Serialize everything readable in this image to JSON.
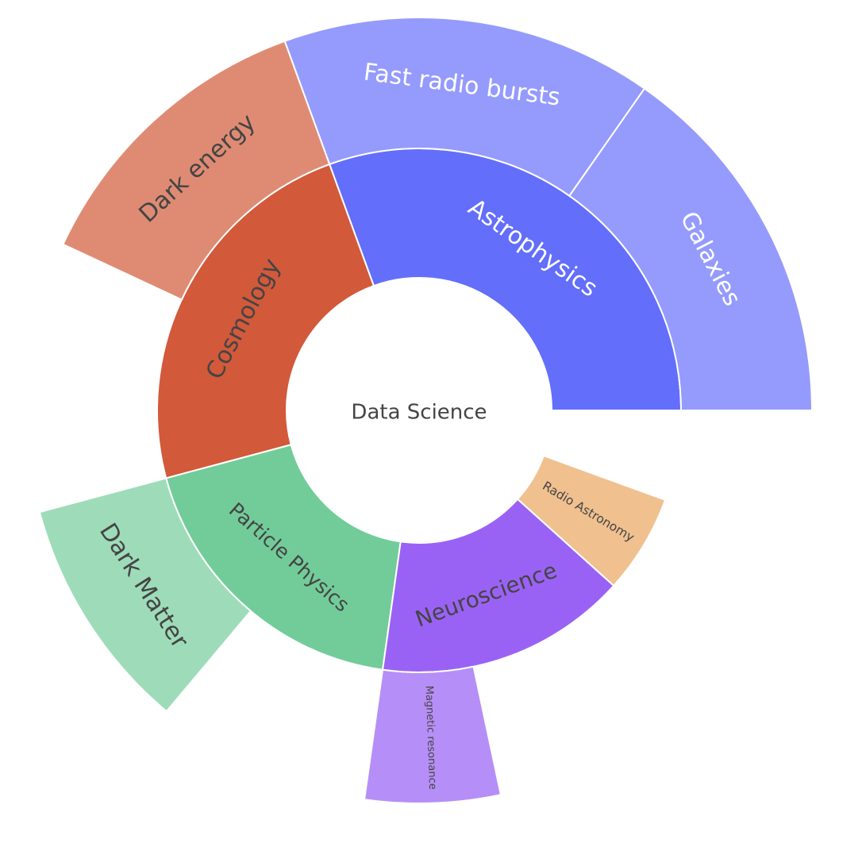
{
  "chart_data": {
    "type": "sunburst",
    "root": {
      "label": "Data Science",
      "color": "#ffffff",
      "text_color": "#444444"
    },
    "children": [
      {
        "label": "Astrophysics",
        "color": "#636efa",
        "text_color": "#ffffff",
        "start_deg": 0,
        "end_deg": 110,
        "children": [
          {
            "label": "Galaxies",
            "color": "#959bfc",
            "text_color": "#ffffff",
            "start_deg": 0,
            "end_deg": 55
          },
          {
            "label": "Fast radio bursts",
            "color": "#959bfc",
            "text_color": "#ffffff",
            "start_deg": 55,
            "end_deg": 110
          }
        ]
      },
      {
        "label": "Cosmology",
        "color": "#d2593a",
        "text_color": "#444444",
        "start_deg": 110,
        "end_deg": 195,
        "children": [
          {
            "label": "Dark energy",
            "color": "#df8b74",
            "text_color": "#444444",
            "start_deg": 110,
            "end_deg": 155
          }
        ]
      },
      {
        "label": "Particle Physics",
        "color": "#72cc99",
        "text_color": "#444444",
        "start_deg": 195,
        "end_deg": 262,
        "children": [
          {
            "label": "Dark Matter",
            "color": "#9edcb9",
            "text_color": "#444444",
            "start_deg": 195,
            "end_deg": 230
          }
        ]
      },
      {
        "label": "Neuroscience",
        "color": "#9a62f4",
        "text_color": "#444444",
        "start_deg": 262,
        "end_deg": 318,
        "children": [
          {
            "label": "Magnetic resonance",
            "color": "#b58ff7",
            "text_color": "#444444",
            "start_deg": 262,
            "end_deg": 282
          }
        ]
      },
      {
        "label": "Radio Astronomy",
        "color": "#f0c08f",
        "text_color": "#444444",
        "start_deg": 318,
        "end_deg": 340,
        "children": []
      }
    ]
  }
}
